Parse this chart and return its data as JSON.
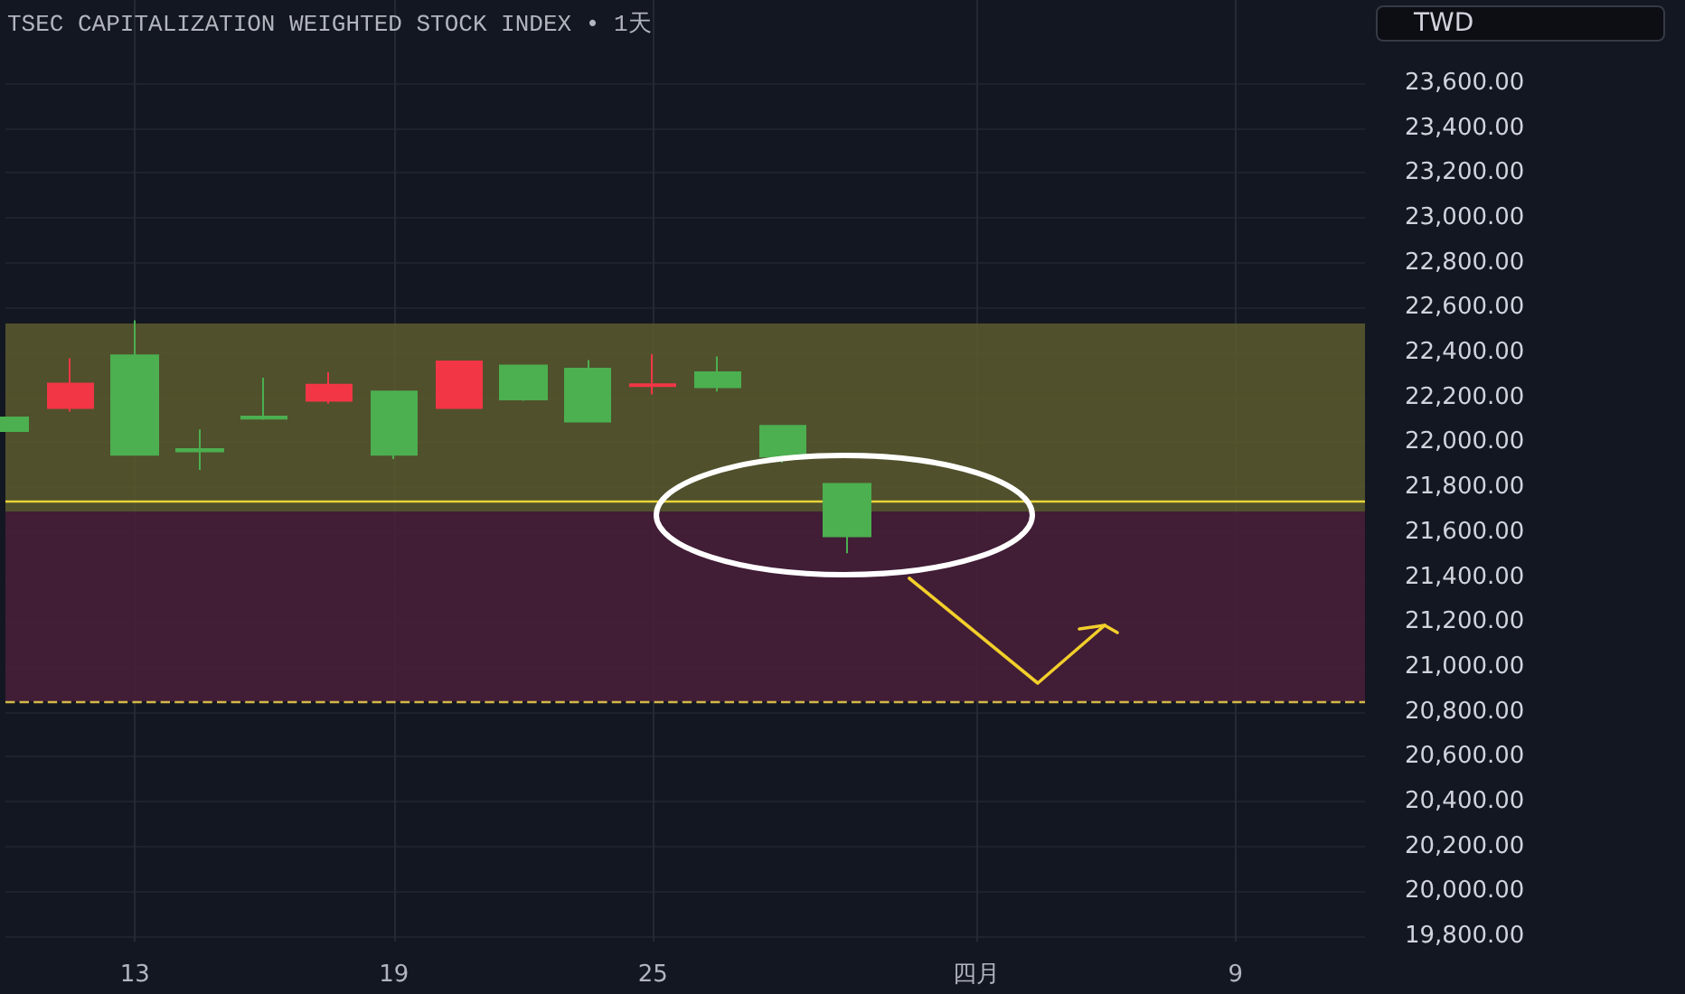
{
  "chart_data": {
    "type": "candlestick",
    "title": "TSEC CAPITALIZATION WEIGHTED STOCK INDEX • 1天",
    "ylabel": "TWD",
    "categories": [
      null,
      null,
      "13",
      null,
      null,
      null,
      "19",
      null,
      null,
      null,
      "25",
      null,
      null,
      null,
      null,
      "四月",
      null,
      null,
      null,
      "9",
      null,
      null
    ],
    "ohlc": [
      [
        22110,
        22110,
        22050,
        22050
      ],
      [
        22153,
        22374,
        22137,
        22261
      ],
      [
        22387,
        22543,
        21944,
        21944
      ],
      [
        21970,
        22057,
        21877,
        21960
      ],
      [
        22115,
        22288,
        22100,
        22105
      ],
      [
        22185,
        22312,
        22172,
        22256
      ],
      [
        22226,
        22226,
        21925,
        21944
      ],
      [
        22153,
        22360,
        22153,
        22360
      ],
      [
        22342,
        22345,
        22185,
        22191
      ],
      [
        22328,
        22366,
        22092,
        22092
      ],
      [
        22250,
        22392,
        22213,
        22258
      ],
      [
        22312,
        22382,
        22226,
        22245
      ],
      [
        22073,
        22073,
        21909,
        21936
      ],
      [
        21815,
        21815,
        21506,
        21581
      ],
      null,
      null,
      null,
      null,
      null,
      null,
      null,
      null
    ],
    "colors": [
      "#4caf50",
      "#f23645",
      "#4caf50",
      "#4caf50",
      "#4caf50",
      "#f23645",
      "#4caf50",
      "#f23645",
      "#4caf50",
      "#4caf50",
      "#f23645",
      "#4caf50",
      "#4caf50",
      "#4caf50",
      null,
      null,
      null,
      null,
      null,
      null,
      null,
      null
    ],
    "ylim": [
      19776,
      23970
    ],
    "yticks": [
      {
        "value": 19800,
        "label": "19,800.00"
      },
      {
        "value": 20000,
        "label": "20,000.00"
      },
      {
        "value": 20200,
        "label": "20,200.00"
      },
      {
        "value": 20400,
        "label": "20,400.00"
      },
      {
        "value": 20600,
        "label": "20,600.00"
      },
      {
        "value": 20800,
        "label": "20,800.00"
      },
      {
        "value": 21000,
        "label": "21,000.00"
      },
      {
        "value": 21200,
        "label": "21,200.00"
      },
      {
        "value": 21400,
        "label": "21,400.00"
      },
      {
        "value": 21600,
        "label": "21,600.00"
      },
      {
        "value": 21800,
        "label": "21,800.00"
      },
      {
        "value": 22000,
        "label": "22,000.00"
      },
      {
        "value": 22200,
        "label": "22,200.00"
      },
      {
        "value": 22400,
        "label": "22,400.00"
      },
      {
        "value": 22600,
        "label": "22,600.00"
      },
      {
        "value": 22800,
        "label": "22,800.00"
      },
      {
        "value": 23000,
        "label": "23,000.00"
      },
      {
        "value": 23200,
        "label": "23,200.00"
      },
      {
        "value": 23400,
        "label": "23,400.00"
      },
      {
        "value": 23600,
        "label": "23,600.00"
      }
    ],
    "bands": [
      {
        "axis": "y",
        "from": 21692,
        "to": 22529,
        "color": "#5c5a2e"
      },
      {
        "axis": "y",
        "from": 20846,
        "to": 21692,
        "color": "#4a1f3a"
      }
    ],
    "ref_lines": [
      {
        "axis": "y",
        "value": 21740,
        "color": "#e8d43a",
        "line_style": "solid"
      },
      {
        "axis": "y",
        "value": 20846,
        "color": "#d4b848",
        "line_style": "dashed"
      }
    ],
    "grid": true
  }
}
